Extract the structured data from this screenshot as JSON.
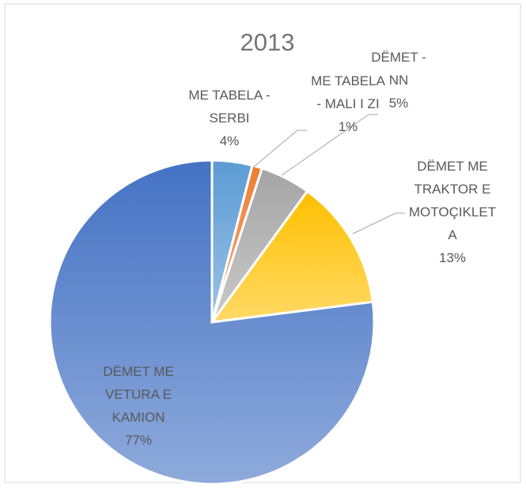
{
  "chart_data": {
    "type": "pie",
    "title": "2013",
    "categories": [
      "ME TABELA - SERBI",
      "ME TABELA - MALI I ZI",
      "DËMET - NN",
      "DËMET ME TRAKTOR E MOTOÇIKLETA",
      "DËMET ME VETURA E KAMION"
    ],
    "values": [
      4,
      1,
      5,
      13,
      77
    ],
    "value_labels": [
      "4%",
      "1%",
      "5%",
      "13%",
      "77%"
    ],
    "colors": [
      "#5b9bd5",
      "#ed7d31",
      "#a5a5a5",
      "#ffc000",
      "#4472c4"
    ]
  }
}
